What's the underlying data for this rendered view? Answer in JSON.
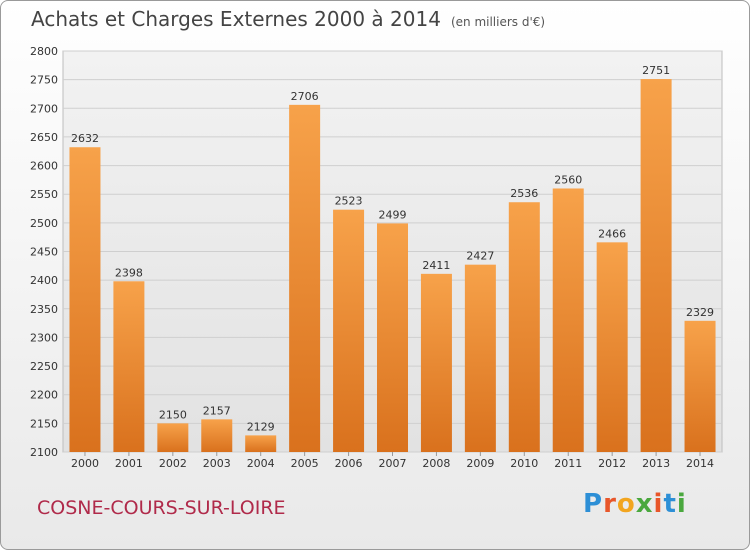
{
  "chart_data": {
    "type": "bar",
    "title": "Achats et Charges Externes 2000 à 2014",
    "subtitle": "(en milliers d'€)",
    "categories": [
      "2000",
      "2001",
      "2002",
      "2003",
      "2004",
      "2005",
      "2006",
      "2007",
      "2008",
      "2009",
      "2010",
      "2011",
      "2012",
      "2013",
      "2014"
    ],
    "values": [
      2632,
      2398,
      2150,
      2157,
      2129,
      2706,
      2523,
      2499,
      2411,
      2427,
      2536,
      2560,
      2466,
      2751,
      2329
    ],
    "ylim": [
      2100,
      2800
    ],
    "yticks": [
      2100,
      2150,
      2200,
      2250,
      2300,
      2350,
      2400,
      2450,
      2500,
      2550,
      2600,
      2650,
      2700,
      2750,
      2800
    ],
    "grid": true,
    "legend": "none",
    "bar_color": "#f0963c"
  },
  "commune": "COSNE-COURS-SUR-LOIRE",
  "logo": "Proxiti"
}
